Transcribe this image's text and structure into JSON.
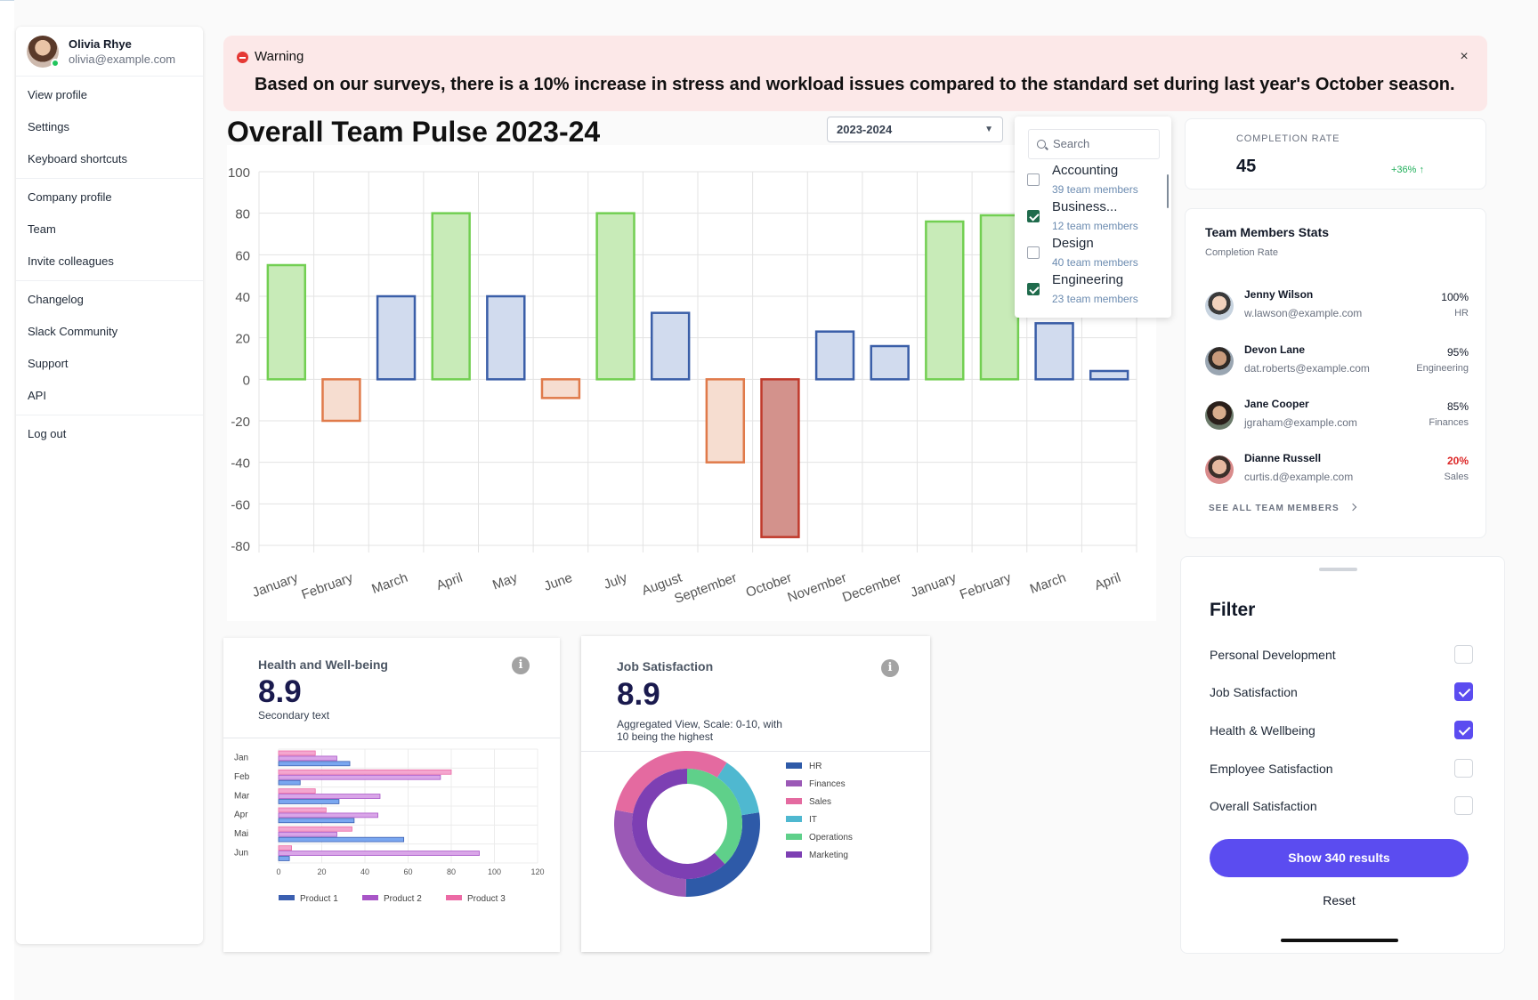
{
  "user": {
    "name": "Olivia Rhye",
    "email": "olivia@example.com"
  },
  "menu": {
    "groups": [
      [
        "View profile",
        "Settings",
        "Keyboard shortcuts"
      ],
      [
        "Company profile",
        "Team",
        "Invite colleagues"
      ],
      [
        "Changelog",
        "Slack Community",
        "Support",
        "API"
      ],
      [
        "Log out"
      ]
    ]
  },
  "warning": {
    "title": "Warning",
    "message": "Based on our surveys, there is a 10% increase in stress and workload issues compared to the standard set during last year's October season.",
    "close": "×"
  },
  "pulse": {
    "title": "Overall Team Pulse 2023-24",
    "year_selected": "2023-2024",
    "caret": "▼"
  },
  "departments": {
    "search_placeholder": "Search",
    "items": [
      {
        "name": "Accounting",
        "sub": "39 team members",
        "checked": false
      },
      {
        "name": "Business...",
        "sub": "12 team members",
        "checked": true
      },
      {
        "name": "Design",
        "sub": "40 team members",
        "checked": false
      },
      {
        "name": "Engineering",
        "sub": "23 team members",
        "checked": true
      }
    ]
  },
  "completion": {
    "label": "COMPLETION RATE",
    "value": "45",
    "delta": "+36% ↑"
  },
  "team_stats": {
    "title": "Team Members Stats",
    "subtitle": "Completion Rate",
    "members": [
      {
        "name": "Jenny Wilson",
        "email": "w.lawson@example.com",
        "pct": "100%",
        "dept": "HR",
        "low": false
      },
      {
        "name": "Devon Lane",
        "email": "dat.roberts@example.com",
        "pct": "95%",
        "dept": "Engineering",
        "low": false
      },
      {
        "name": "Jane Cooper",
        "email": "jgraham@example.com",
        "pct": "85%",
        "dept": "Finances",
        "low": false
      },
      {
        "name": "Dianne Russell",
        "email": "curtis.d@example.com",
        "pct": "20%",
        "dept": "Sales",
        "low": true
      }
    ],
    "see_all": "SEE ALL TEAM MEMBERS"
  },
  "filter": {
    "title": "Filter",
    "options": [
      {
        "label": "Personal Development",
        "checked": false
      },
      {
        "label": "Job Satisfaction",
        "checked": true
      },
      {
        "label": "Health & Wellbeing",
        "checked": true
      },
      {
        "label": "Employee Satisfaction",
        "checked": false
      },
      {
        "label": "Overall Satisfaction",
        "checked": false
      }
    ],
    "show_button": "Show 340 results",
    "reset": "Reset"
  },
  "health": {
    "title": "Health and Well-being",
    "value": "8.9",
    "sub": "Secondary text",
    "info": "i"
  },
  "job_satisfaction": {
    "title": "Job Satisfaction",
    "value": "8.9",
    "sub_line1": "Aggregated View, Scale: 0-10, with",
    "sub_line2": "10 being the highest",
    "info": "i"
  },
  "colors": {
    "accent": "#5b4cf0",
    "positive_strong": "#6fcf4f",
    "positive_soft": "#3b5fb0",
    "negative_soft": "#e07a4a",
    "negative_strong": "#c0392b"
  },
  "chart_data": [
    {
      "type": "bar",
      "title": "Overall Team Pulse 2023-24",
      "categories": [
        "January",
        "February",
        "March",
        "April",
        "May",
        "June",
        "July",
        "August",
        "September",
        "October",
        "November",
        "December",
        "January",
        "February",
        "March",
        "April"
      ],
      "values": [
        55,
        -20,
        40,
        80,
        40,
        -9,
        80,
        32,
        -40,
        -76,
        23,
        16,
        76,
        79,
        27,
        4
      ],
      "ylim": [
        -80,
        100
      ],
      "yticks": [
        100,
        80,
        60,
        40,
        20,
        0,
        -20,
        -40,
        -60,
        -80
      ],
      "grid": true,
      "xlabel": "",
      "ylabel": ""
    },
    {
      "type": "bar",
      "orientation": "horizontal",
      "title": "Health and Well-being",
      "categories": [
        "Jan",
        "Feb",
        "Mar",
        "Apr",
        "Mai",
        "Jun"
      ],
      "series": [
        {
          "name": "Product 1",
          "color": "#3b5fb0",
          "values": [
            33,
            10,
            28,
            35,
            58,
            5
          ]
        },
        {
          "name": "Product 2",
          "color": "#a855c7",
          "values": [
            27,
            75,
            47,
            46,
            27,
            93
          ]
        },
        {
          "name": "Product 3",
          "color": "#ec6aa5",
          "values": [
            17,
            80,
            17,
            22,
            34,
            6
          ]
        }
      ],
      "xticks": [
        0,
        20,
        40,
        60,
        80,
        100,
        120
      ],
      "xlim": [
        0,
        120
      ],
      "legend": "bottom"
    },
    {
      "type": "pie",
      "variant": "double-donut",
      "title": "Job Satisfaction",
      "labels": [
        "HR",
        "Finances",
        "Sales",
        "IT",
        "Operations",
        "Marketing"
      ],
      "colors": [
        "#2e5aa8",
        "#9b59b6",
        "#e46aa0",
        "#4fb8d0",
        "#5fd08a",
        "#7d3fb3"
      ],
      "outer": [
        25,
        25,
        28,
        12,
        0,
        0
      ],
      "inner": [
        0,
        0,
        0,
        0,
        38,
        62
      ],
      "legend": "right"
    }
  ]
}
